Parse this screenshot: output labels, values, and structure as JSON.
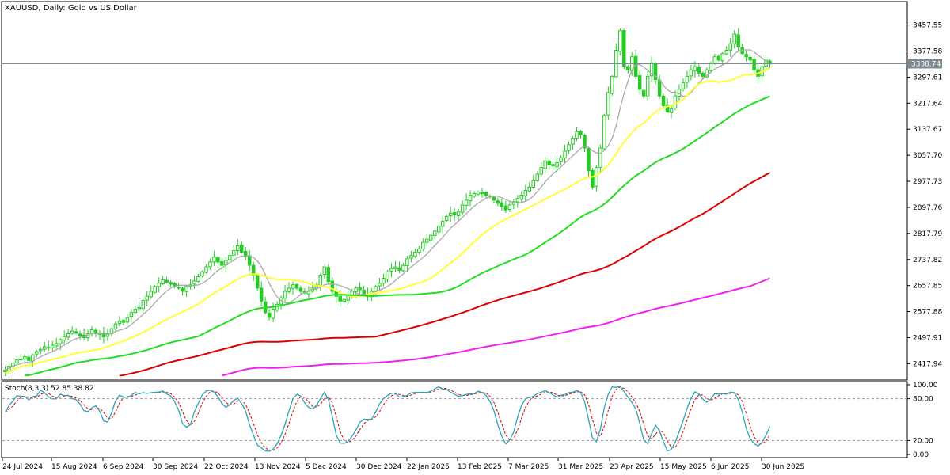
{
  "header": {
    "symbol": "XAUUSD",
    "timeframe": "Daily",
    "description": "Gold vs US Dollar",
    "title": "XAUUSD, Daily:  Gold vs US Dollar"
  },
  "colors": {
    "bull": "#22cc22",
    "bear": "#22cc22",
    "ma_fast": "#aaaaaa",
    "ma_50": "#ffff33",
    "ma_100": "#22dd22",
    "ma_200": "#dd0000",
    "ma_400": "#ee22ee",
    "stoch_main": "#2aa5b5",
    "stoch_signal": "#dd0000",
    "price_line": "#7a8a90",
    "price_badge_bg": "#7a8a90"
  },
  "chart_data": {
    "type": "candlestick",
    "price_axis": {
      "ticks": [
        "3457.55",
        "3377.58",
        "3297.61",
        "3217.64",
        "3137.67",
        "3057.70",
        "2977.73",
        "2897.76",
        "2817.79",
        "2737.82",
        "2657.85",
        "2577.88",
        "2497.91",
        "2417.94"
      ],
      "ylim": [
        2380,
        3510
      ]
    },
    "current_price": "3338.74",
    "x_axis_labels": [
      "24 Jul 2024",
      "15 Aug 2024",
      "6 Sep 2024",
      "30 Sep 2024",
      "22 Oct 2024",
      "13 Nov 2024",
      "5 Dec 2024",
      "30 Dec 2024",
      "22 Jan 2025",
      "13 Feb 2025",
      "7 Mar 2025",
      "31 Mar 2025",
      "23 Apr 2025",
      "15 May 2025",
      "6 Jun 2025",
      "30 Jun 2025"
    ],
    "closes": [
      2398,
      2410,
      2420,
      2430,
      2432,
      2440,
      2428,
      2445,
      2455,
      2462,
      2470,
      2468,
      2475,
      2480,
      2492,
      2501,
      2510,
      2518,
      2512,
      2505,
      2498,
      2510,
      2522,
      2515,
      2508,
      2500,
      2510,
      2525,
      2540,
      2548,
      2545,
      2560,
      2575,
      2585,
      2590,
      2612,
      2625,
      2640,
      2655,
      2665,
      2675,
      2668,
      2662,
      2655,
      2650,
      2640,
      2655,
      2660,
      2672,
      2685,
      2700,
      2715,
      2730,
      2745,
      2730,
      2720,
      2735,
      2750,
      2765,
      2780,
      2760,
      2750,
      2720,
      2690,
      2650,
      2610,
      2575,
      2560,
      2585,
      2600,
      2620,
      2640,
      2650,
      2660,
      2650,
      2640,
      2635,
      2640,
      2650,
      2660,
      2690,
      2715,
      2670,
      2640,
      2625,
      2610,
      2615,
      2625,
      2640,
      2650,
      2645,
      2630,
      2625,
      2640,
      2655,
      2665,
      2680,
      2700,
      2710,
      2715,
      2705,
      2720,
      2740,
      2750,
      2760,
      2770,
      2790,
      2800,
      2812,
      2825,
      2840,
      2855,
      2870,
      2880,
      2875,
      2885,
      2905,
      2920,
      2935,
      2940,
      2945,
      2940,
      2935,
      2930,
      2920,
      2910,
      2900,
      2890,
      2905,
      2915,
      2925,
      2935,
      2950,
      2960,
      2980,
      3000,
      3020,
      3040,
      3030,
      3025,
      3035,
      3050,
      3070,
      3090,
      3110,
      3130,
      3120,
      3080,
      3010,
      2960,
      3020,
      3080,
      3180,
      3250,
      3300,
      3380,
      3440,
      3330,
      3320,
      3360,
      3300,
      3260,
      3240,
      3300,
      3340,
      3290,
      3240,
      3210,
      3190,
      3200,
      3240,
      3260,
      3280,
      3300,
      3320,
      3330,
      3310,
      3300,
      3320,
      3340,
      3360,
      3350,
      3370,
      3380,
      3400,
      3430,
      3390,
      3370,
      3360,
      3350,
      3320,
      3300,
      3330,
      3350,
      3338
    ],
    "moving_averages": [
      {
        "period_hint": "fast",
        "color_key": "ma_fast"
      },
      {
        "period_hint": "50",
        "color_key": "ma_50"
      },
      {
        "period_hint": "100",
        "color_key": "ma_100"
      },
      {
        "period_hint": "200",
        "color_key": "ma_200"
      },
      {
        "period_hint": "400",
        "color_key": "ma_400"
      }
    ],
    "stochastic": {
      "label": "Stoch(8,3,3) 52.85 38.82",
      "levels": [
        "100.00",
        "80.00",
        "20.00",
        "0.00"
      ],
      "ylim": [
        0,
        100
      ]
    }
  }
}
